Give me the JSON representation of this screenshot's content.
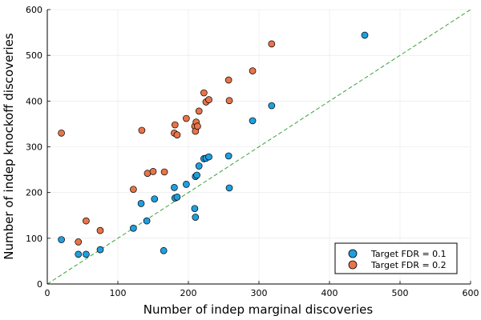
{
  "chart_data": {
    "type": "scatter",
    "title": "",
    "xlabel": "Number of indep marginal discoveries",
    "ylabel": "Number of indep knockoff discoveries",
    "xlim": [
      0,
      600
    ],
    "ylim": [
      0,
      600
    ],
    "xticks": [
      0,
      100,
      200,
      300,
      400,
      500,
      600
    ],
    "yticks": [
      0,
      100,
      200,
      300,
      400,
      500,
      600
    ],
    "grid": true,
    "legend_position": "bottom-right",
    "reference_line": {
      "type": "diagonal",
      "from": [
        0,
        0
      ],
      "to": [
        600,
        600
      ],
      "style": "dashed",
      "color": "#3aa13a"
    },
    "series": [
      {
        "name": "Target FDR = 0.1",
        "color": "#1f9fe0",
        "points": [
          [
            20,
            97
          ],
          [
            44,
            65
          ],
          [
            55,
            65
          ],
          [
            75,
            75
          ],
          [
            122,
            122
          ],
          [
            133,
            176
          ],
          [
            141,
            138
          ],
          [
            152,
            186
          ],
          [
            165,
            73
          ],
          [
            180,
            211
          ],
          [
            181,
            188
          ],
          [
            184,
            190
          ],
          [
            197,
            218
          ],
          [
            209,
            165
          ],
          [
            210,
            146
          ],
          [
            210,
            235
          ],
          [
            212,
            238
          ],
          [
            215,
            258
          ],
          [
            222,
            274
          ],
          [
            225,
            275
          ],
          [
            229,
            278
          ],
          [
            257,
            280
          ],
          [
            258,
            210
          ],
          [
            291,
            357
          ],
          [
            318,
            390
          ],
          [
            450,
            544
          ]
        ]
      },
      {
        "name": "Target FDR = 0.2",
        "color": "#e8744a",
        "points": [
          [
            20,
            330
          ],
          [
            44,
            92
          ],
          [
            55,
            138
          ],
          [
            75,
            117
          ],
          [
            122,
            207
          ],
          [
            134,
            336
          ],
          [
            142,
            242
          ],
          [
            150,
            246
          ],
          [
            166,
            245
          ],
          [
            180,
            330
          ],
          [
            181,
            348
          ],
          [
            184,
            326
          ],
          [
            197,
            362
          ],
          [
            209,
            345
          ],
          [
            210,
            334
          ],
          [
            211,
            354
          ],
          [
            213,
            345
          ],
          [
            215,
            378
          ],
          [
            222,
            418
          ],
          [
            225,
            398
          ],
          [
            229,
            403
          ],
          [
            257,
            446
          ],
          [
            258,
            401
          ],
          [
            291,
            466
          ],
          [
            318,
            525
          ]
        ]
      }
    ]
  }
}
